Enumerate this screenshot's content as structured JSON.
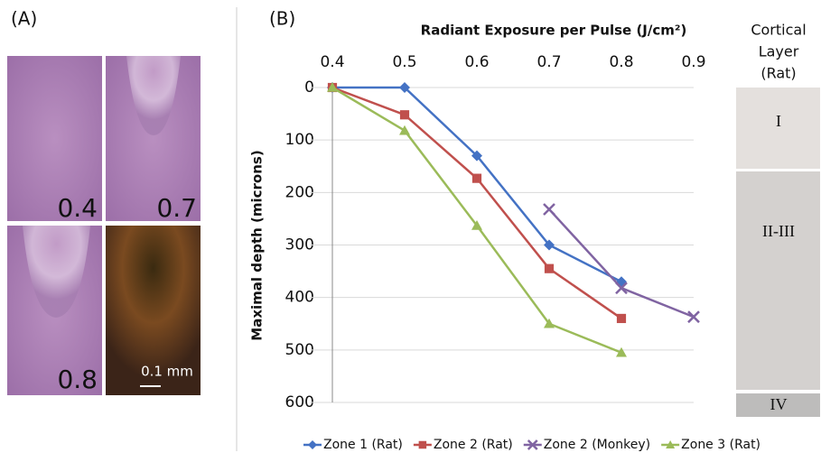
{
  "panel_a": {
    "label": "(A)",
    "images": [
      "0.4",
      "0.7",
      "0.8"
    ],
    "scale_bar": "0.1 mm"
  },
  "chart_data": {
    "type": "line",
    "panel_label": "(B)",
    "title": "Radiant Exposure per Pulse (J/cm²)",
    "y_label": "Maximal depth (microns)",
    "xlim": [
      0.4,
      0.9
    ],
    "xticks": [
      0.4,
      0.5,
      0.6,
      0.7,
      0.8,
      0.9
    ],
    "x_axis_position": "top",
    "ylim": [
      0,
      600
    ],
    "yticks": [
      0,
      100,
      200,
      300,
      400,
      500,
      600
    ],
    "y_reversed": true,
    "grid": true,
    "legend": "bottom",
    "series": [
      {
        "name": "Zone 1 (Rat)",
        "color": "#4472c4",
        "marker": "diamond",
        "x": [
          0.4,
          0.5,
          0.6,
          0.7,
          0.8
        ],
        "values": [
          0,
          0,
          130,
          300,
          370
        ]
      },
      {
        "name": "Zone 2 (Rat)",
        "color": "#c0504d",
        "marker": "square",
        "x": [
          0.4,
          0.5,
          0.6,
          0.7,
          0.8
        ],
        "values": [
          0,
          52,
          173,
          345,
          440
        ]
      },
      {
        "name": "Zone 2 (Monkey)",
        "color": "#8064a2",
        "marker": "cross",
        "x": [
          0.7,
          0.8,
          0.9
        ],
        "values": [
          232,
          382,
          437
        ]
      },
      {
        "name": "Zone 3 (Rat)",
        "color": "#9bbb59",
        "marker": "triangle",
        "x": [
          0.4,
          0.5,
          0.6,
          0.7,
          0.8
        ],
        "values": [
          0,
          82,
          263,
          450,
          505
        ]
      }
    ]
  },
  "cortical_layers": {
    "title": [
      "Cortical",
      "Layer",
      "(Rat)"
    ],
    "layers": [
      "I",
      "II-III",
      "IV"
    ]
  }
}
